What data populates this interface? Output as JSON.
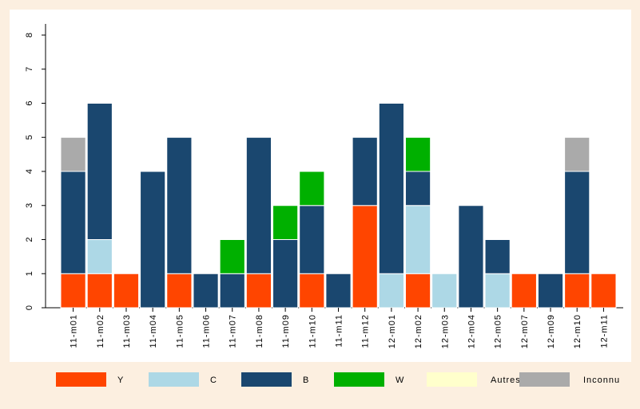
{
  "chart_data": {
    "type": "stacked_bar",
    "categories": [
      "11-m01",
      "11-m02",
      "11-m03",
      "11-m04",
      "11-m05",
      "11-m06",
      "11-m07",
      "11-m08",
      "11-m09",
      "11-m10",
      "11-m11",
      "11-m12",
      "12-m01",
      "12-m02",
      "12-m03",
      "12-m04",
      "12-m05",
      "12-m07",
      "12-m09",
      "12-m10",
      "12-m11"
    ],
    "series": [
      {
        "name": "Y",
        "color": "#ff4500",
        "values": [
          1,
          1,
          1,
          0,
          1,
          0,
          0,
          1,
          0,
          1,
          0,
          3,
          0,
          1,
          0,
          0,
          0,
          1,
          0,
          1,
          1
        ]
      },
      {
        "name": "C",
        "color": "#add8e6",
        "values": [
          0,
          1,
          0,
          0,
          0,
          0,
          0,
          0,
          0,
          0,
          0,
          0,
          1,
          2,
          1,
          0,
          1,
          0,
          0,
          0,
          0
        ]
      },
      {
        "name": "B",
        "color": "#1a476f",
        "values": [
          3,
          4,
          0,
          4,
          4,
          1,
          1,
          4,
          2,
          2,
          1,
          2,
          5,
          1,
          0,
          3,
          1,
          0,
          1,
          3,
          0
        ]
      },
      {
        "name": "W",
        "color": "#00b000",
        "values": [
          0,
          0,
          0,
          0,
          0,
          0,
          1,
          0,
          1,
          1,
          0,
          0,
          0,
          1,
          0,
          0,
          0,
          0,
          0,
          0,
          0
        ]
      },
      {
        "name": "Autres",
        "color": "#ffffcc",
        "values": [
          0,
          0,
          0,
          0,
          0,
          0,
          0,
          0,
          0,
          0,
          0,
          0,
          0,
          0,
          0,
          0,
          0,
          0,
          0,
          0,
          0
        ]
      },
      {
        "name": "Inconnu",
        "color": "#aaaaaa",
        "values": [
          1,
          0,
          0,
          0,
          0,
          0,
          0,
          0,
          0,
          0,
          0,
          0,
          0,
          0,
          0,
          0,
          0,
          0,
          0,
          1,
          0
        ]
      }
    ],
    "ylim": [
      0,
      8
    ],
    "yticks": [
      0,
      1,
      2,
      3,
      4,
      5,
      6,
      7,
      8
    ],
    "grid": false
  }
}
